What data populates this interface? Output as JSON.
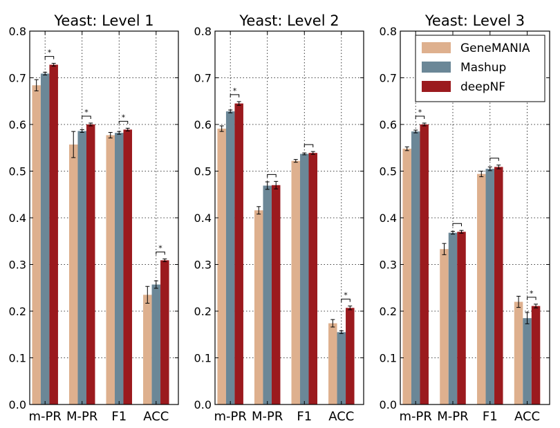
{
  "colors": {
    "GeneMANIA": "#deb08e",
    "Mashup": "#6b8797",
    "deepNF": "#9b1a1e"
  },
  "legend": {
    "position": "top-right of panel 3",
    "entries": [
      "GeneMANIA",
      "Mashup",
      "deepNF"
    ]
  },
  "chart_data": [
    {
      "type": "bar",
      "title": "Yeast: Level 1",
      "categories": [
        "m-PR",
        "M-PR",
        "F1",
        "ACC"
      ],
      "ylim": [
        0,
        0.8
      ],
      "yticks": [
        "0.0",
        "0.1",
        "0.2",
        "0.3",
        "0.4",
        "0.5",
        "0.6",
        "0.7",
        "0.8"
      ],
      "grid": true,
      "series": [
        {
          "name": "GeneMANIA",
          "values": [
            0.684,
            0.557,
            0.577,
            0.235
          ],
          "errors": [
            0.012,
            0.028,
            0.006,
            0.018
          ]
        },
        {
          "name": "Mashup",
          "values": [
            0.709,
            0.586,
            0.582,
            0.257
          ],
          "errors": [
            0.003,
            0.003,
            0.003,
            0.008
          ]
        },
        {
          "name": "deepNF",
          "values": [
            0.728,
            0.6,
            0.589,
            0.309
          ],
          "errors": [
            0.003,
            0.003,
            0.003,
            0.003
          ]
        }
      ],
      "significance": [
        {
          "category": 0,
          "pair": [
            1,
            2
          ],
          "label": "*"
        },
        {
          "category": 1,
          "pair": [
            1,
            2
          ],
          "label": "*"
        },
        {
          "category": 2,
          "pair": [
            1,
            2
          ],
          "label": "*"
        },
        {
          "category": 3,
          "pair": [
            1,
            2
          ],
          "label": "*"
        }
      ]
    },
    {
      "type": "bar",
      "title": "Yeast: Level 2",
      "categories": [
        "m-PR",
        "M-PR",
        "F1",
        "ACC"
      ],
      "ylim": [
        0,
        0.8
      ],
      "yticks": [
        "0.0",
        "0.1",
        "0.2",
        "0.3",
        "0.4",
        "0.5",
        "0.6",
        "0.7",
        "0.8"
      ],
      "grid": true,
      "series": [
        {
          "name": "GeneMANIA",
          "values": [
            0.591,
            0.416,
            0.522,
            0.174
          ],
          "errors": [
            0.006,
            0.008,
            0.003,
            0.008
          ]
        },
        {
          "name": "Mashup",
          "values": [
            0.628,
            0.469,
            0.537,
            0.155
          ],
          "errors": [
            0.003,
            0.008,
            0.002,
            0.003
          ]
        },
        {
          "name": "deepNF",
          "values": [
            0.645,
            0.47,
            0.539,
            0.207
          ],
          "errors": [
            0.004,
            0.008,
            0.003,
            0.004
          ]
        }
      ],
      "significance": [
        {
          "category": 0,
          "pair": [
            1,
            2
          ],
          "label": "*"
        },
        {
          "category": 1,
          "pair": [
            1,
            2
          ],
          "label": ""
        },
        {
          "category": 2,
          "pair": [
            1,
            2
          ],
          "label": ""
        },
        {
          "category": 3,
          "pair": [
            1,
            2
          ],
          "label": "*"
        }
      ]
    },
    {
      "type": "bar",
      "title": "Yeast: Level 3",
      "categories": [
        "m-PR",
        "M-PR",
        "F1",
        "ACC"
      ],
      "ylim": [
        0,
        0.8
      ],
      "yticks": [
        "0.0",
        "0.1",
        "0.2",
        "0.3",
        "0.4",
        "0.5",
        "0.6",
        "0.7",
        "0.8"
      ],
      "grid": true,
      "series": [
        {
          "name": "GeneMANIA",
          "values": [
            0.548,
            0.333,
            0.494,
            0.22
          ],
          "errors": [
            0.004,
            0.012,
            0.006,
            0.012
          ]
        },
        {
          "name": "Mashup",
          "values": [
            0.585,
            0.368,
            0.505,
            0.185
          ],
          "errors": [
            0.003,
            0.003,
            0.004,
            0.012
          ]
        },
        {
          "name": "deepNF",
          "values": [
            0.6,
            0.37,
            0.509,
            0.211
          ],
          "errors": [
            0.003,
            0.003,
            0.004,
            0.004
          ]
        }
      ],
      "significance": [
        {
          "category": 0,
          "pair": [
            1,
            2
          ],
          "label": "*"
        },
        {
          "category": 1,
          "pair": [
            1,
            2
          ],
          "label": ""
        },
        {
          "category": 2,
          "pair": [
            1,
            2
          ],
          "label": ""
        },
        {
          "category": 3,
          "pair": [
            1,
            2
          ],
          "label": "*"
        }
      ]
    }
  ]
}
